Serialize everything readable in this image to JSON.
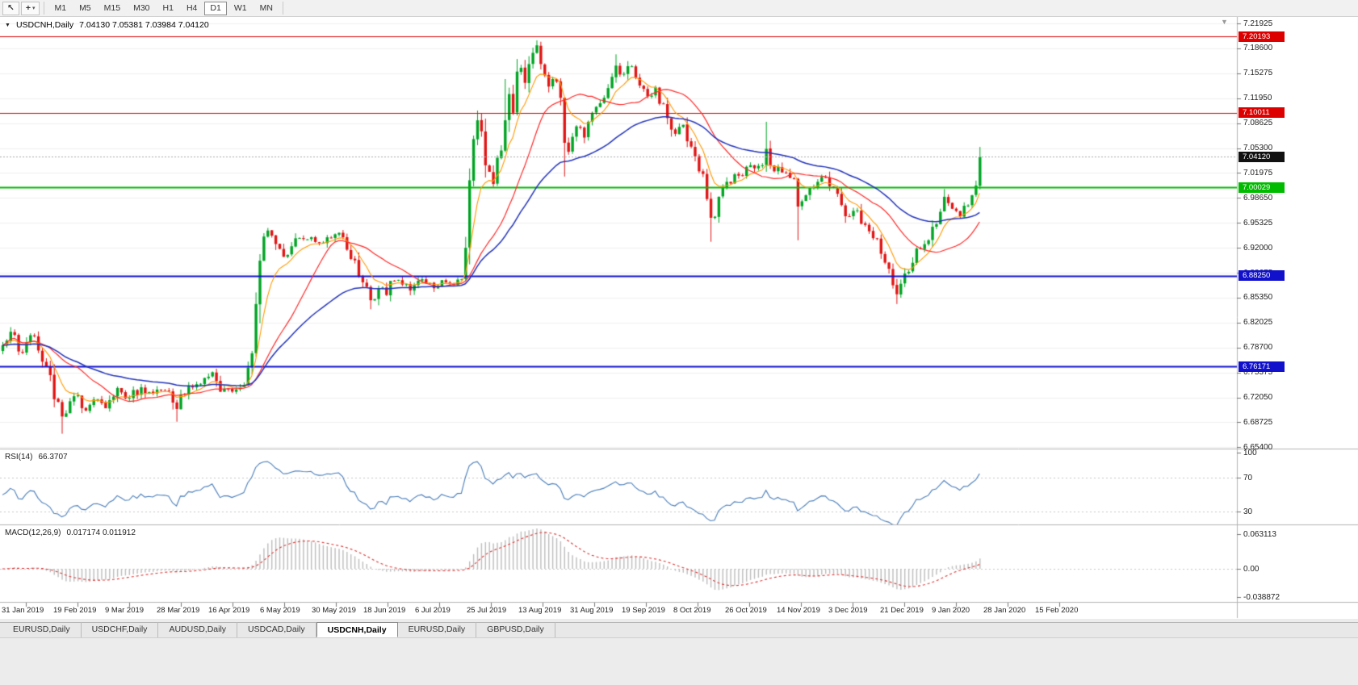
{
  "toolbar": {
    "cursor_glyph": "↖",
    "crosshair_glyph": "+",
    "caret": "▾",
    "timeframes": [
      "M1",
      "M5",
      "M15",
      "M30",
      "H1",
      "H4",
      "D1",
      "W1",
      "MN"
    ],
    "active_timeframe": "D1"
  },
  "title": {
    "menu_icon": "▼",
    "symbol": "USDCNH,Daily",
    "ohlc": "7.04130 7.05381 7.03984 7.04120"
  },
  "shift_marker_glyph": "▼",
  "price_axis": {
    "labels": [
      "7.21925",
      "7.18600",
      "7.15275",
      "7.11950",
      "7.08625",
      "7.05300",
      "7.01975",
      "6.98650",
      "6.95325",
      "6.92000",
      "6.88675",
      "6.85350",
      "6.82025",
      "6.78700",
      "6.75375",
      "6.72050",
      "6.68725",
      "6.65400"
    ]
  },
  "current_price": {
    "label": "7.04120",
    "value": 7.0412
  },
  "levels": [
    {
      "label": "7.20193",
      "value": 7.20193,
      "color": "#dd0000",
      "width": 1
    },
    {
      "label": "7.10011",
      "value": 7.10011,
      "color": "#dd0000",
      "width": 1
    },
    {
      "label": "7.00029",
      "value": 7.00029,
      "color": "#00bb00",
      "width": 2
    },
    {
      "label": "6.88250",
      "value": 6.8825,
      "color": "#1111cc",
      "width": 2
    },
    {
      "label": "6.76171",
      "value": 6.76171,
      "color": "#1111cc",
      "width": 2
    }
  ],
  "rsi": {
    "label": "RSI(14)",
    "value": "66.3707",
    "axis_labels": [
      "100",
      "70",
      "30"
    ],
    "levels": [
      70,
      30
    ],
    "color": "#4a7ebb"
  },
  "macd": {
    "label": "MACD(12,26,9)",
    "values": "0.017174 0.011912",
    "axis_labels": [
      "0.063113",
      "0.00",
      "-0.038872"
    ],
    "hist_color": "#bdbdbd",
    "signal_color": "#e03535"
  },
  "time_axis": {
    "labels": [
      "31 Jan 2019",
      "19 Feb 2019",
      "9 Mar 2019",
      "28 Mar 2019",
      "16 Apr 2019",
      "6 May 2019",
      "30 May 2019",
      "18 Jun 2019",
      "6 Jul 2019",
      "25 Jul 2019",
      "13 Aug 2019",
      "31 Aug 2019",
      "19 Sep 2019",
      "8 Oct 2019",
      "26 Oct 2019",
      "14 Nov 2019",
      "3 Dec 2019",
      "21 Dec 2019",
      "9 Jan 2020",
      "28 Jan 2020",
      "15 Feb 2020"
    ]
  },
  "tabs": [
    {
      "label": "EURUSD,Daily",
      "active": false
    },
    {
      "label": "USDCHF,Daily",
      "active": false
    },
    {
      "label": "AUDUSD,Daily",
      "active": false
    },
    {
      "label": "USDCAD,Daily",
      "active": false
    },
    {
      "label": "USDCNH,Daily",
      "active": true
    },
    {
      "label": "EURUSD,Daily",
      "active": false
    },
    {
      "label": "GBPUSD,Daily",
      "active": false
    }
  ],
  "colors": {
    "up": "#00a524",
    "down": "#e01616",
    "ma_fast": "#ff9900",
    "ma_mid": "#ff2a2a",
    "ma_slow": "#2233bb",
    "grid": "#efefef",
    "panel_border": "#b3b3b3"
  },
  "chart_data": {
    "type": "candlestick",
    "symbol": "USDCNH",
    "period": "Daily",
    "bars": 248,
    "x_range": [
      "31 Jan 2019",
      "15 Feb 2020"
    ],
    "y_range": [
      6.654,
      7.21925
    ],
    "price_path_anchors": [
      [
        0,
        6.79
      ],
      [
        2,
        6.808
      ],
      [
        5,
        6.78
      ],
      [
        8,
        6.802
      ],
      [
        11,
        6.762
      ],
      [
        13,
        6.718
      ],
      [
        15,
        6.695
      ],
      [
        18,
        6.722
      ],
      [
        21,
        6.703
      ],
      [
        24,
        6.718
      ],
      [
        26,
        6.706
      ],
      [
        29,
        6.733
      ],
      [
        32,
        6.72
      ],
      [
        35,
        6.734
      ],
      [
        38,
        6.726
      ],
      [
        41,
        6.73
      ],
      [
        44,
        6.705
      ],
      [
        46,
        6.724
      ],
      [
        49,
        6.738
      ],
      [
        53,
        6.754
      ],
      [
        55,
        6.728
      ],
      [
        59,
        6.731
      ],
      [
        61,
        6.737
      ],
      [
        62,
        6.76
      ],
      [
        64,
        6.845
      ],
      [
        66,
        6.935
      ],
      [
        67,
        6.943
      ],
      [
        69,
        6.925
      ],
      [
        71,
        6.908
      ],
      [
        73,
        6.922
      ],
      [
        75,
        6.933
      ],
      [
        78,
        6.934
      ],
      [
        80,
        6.926
      ],
      [
        82,
        6.934
      ],
      [
        84,
        6.938
      ],
      [
        86,
        6.934
      ],
      [
        88,
        6.905
      ],
      [
        90,
        6.882
      ],
      [
        92,
        6.868
      ],
      [
        93,
        6.85
      ],
      [
        95,
        6.866
      ],
      [
        97,
        6.857
      ],
      [
        99,
        6.876
      ],
      [
        101,
        6.871
      ],
      [
        103,
        6.863
      ],
      [
        105,
        6.876
      ],
      [
        108,
        6.873
      ],
      [
        110,
        6.869
      ],
      [
        112,
        6.874
      ],
      [
        114,
        6.871
      ],
      [
        116,
        6.878
      ],
      [
        117,
        6.92
      ],
      [
        118,
        7.01
      ],
      [
        119,
        7.065
      ],
      [
        120,
        7.09
      ],
      [
        122,
        7.03
      ],
      [
        124,
        7.005
      ],
      [
        125,
        7.04
      ],
      [
        127,
        7.09
      ],
      [
        128,
        7.125
      ],
      [
        129,
        7.1
      ],
      [
        130,
        7.155
      ],
      [
        131,
        7.16
      ],
      [
        132,
        7.14
      ],
      [
        133,
        7.165
      ],
      [
        134,
        7.18
      ],
      [
        135,
        7.19
      ],
      [
        136,
        7.165
      ],
      [
        137,
        7.15
      ],
      [
        138,
        7.135
      ],
      [
        139,
        7.145
      ],
      [
        141,
        7.12
      ],
      [
        142,
        7.06
      ],
      [
        143,
        7.048
      ],
      [
        144,
        7.068
      ],
      [
        146,
        7.08
      ],
      [
        147,
        7.067
      ],
      [
        148,
        7.088
      ],
      [
        149,
        7.1
      ],
      [
        150,
        7.108
      ],
      [
        152,
        7.12
      ],
      [
        153,
        7.133
      ],
      [
        154,
        7.148
      ],
      [
        155,
        7.163
      ],
      [
        157,
        7.152
      ],
      [
        159,
        7.162
      ],
      [
        160,
        7.147
      ],
      [
        162,
        7.132
      ],
      [
        163,
        7.122
      ],
      [
        165,
        7.134
      ],
      [
        167,
        7.112
      ],
      [
        168,
        7.093
      ],
      [
        170,
        7.072
      ],
      [
        172,
        7.084
      ],
      [
        173,
        7.062
      ],
      [
        175,
        7.042
      ],
      [
        176,
        7.022
      ],
      [
        178,
        6.985
      ],
      [
        179,
        6.96
      ],
      [
        181,
        6.988
      ],
      [
        182,
        7.0
      ],
      [
        183,
        7.008
      ],
      [
        185,
        7.018
      ],
      [
        187,
        7.016
      ],
      [
        188,
        7.028
      ],
      [
        190,
        7.026
      ],
      [
        192,
        7.03
      ],
      [
        193,
        7.052
      ],
      [
        194,
        7.03
      ],
      [
        195,
        7.022
      ],
      [
        196,
        7.028
      ],
      [
        198,
        7.02
      ],
      [
        200,
        7.012
      ],
      [
        201,
        6.975
      ],
      [
        202,
        6.982
      ],
      [
        203,
        6.99
      ],
      [
        204,
        7.0
      ],
      [
        206,
        7.008
      ],
      [
        208,
        7.014
      ],
      [
        209,
        7.002
      ],
      [
        211,
        6.992
      ],
      [
        212,
        6.977
      ],
      [
        214,
        6.962
      ],
      [
        216,
        6.97
      ],
      [
        217,
        6.952
      ],
      [
        219,
        6.942
      ],
      [
        221,
        6.932
      ],
      [
        222,
        6.912
      ],
      [
        224,
        6.892
      ],
      [
        225,
        6.87
      ],
      [
        226,
        6.858
      ],
      [
        227,
        6.872
      ],
      [
        229,
        6.888
      ],
      [
        230,
        6.9
      ],
      [
        232,
        6.918
      ],
      [
        234,
        6.93
      ],
      [
        235,
        6.948
      ],
      [
        237,
        6.968
      ],
      [
        238,
        6.988
      ],
      [
        240,
        6.972
      ],
      [
        242,
        6.962
      ],
      [
        243,
        6.976
      ],
      [
        245,
        6.99
      ],
      [
        246,
        7.003
      ],
      [
        247,
        7.0412
      ]
    ],
    "spike_wicks": {
      "15": {
        "low": 6.672
      },
      "44": {
        "low": 6.688
      },
      "93": {
        "low": 6.838
      },
      "120": {
        "high": 7.103
      },
      "127": {
        "high": 7.145
      },
      "135": {
        "high": 7.1965
      },
      "142": {
        "low": 7.015
      },
      "155": {
        "high": 7.178
      },
      "179": {
        "low": 6.928
      },
      "193": {
        "high": 7.088
      },
      "201": {
        "low": 6.93
      },
      "226": {
        "low": 6.845
      },
      "247": {
        "high": 7.0545
      }
    }
  }
}
